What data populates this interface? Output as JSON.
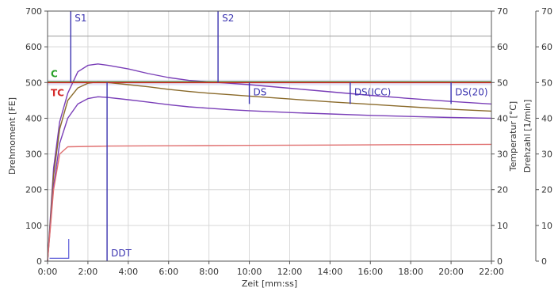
{
  "chart_data": {
    "type": "line",
    "xlabel": "Zeit [mm:ss]",
    "ylabel": "Drehmoment [FE]",
    "y2label": "Temperatur [°C]",
    "y3label": "Drehzahl [1/min]",
    "x_unit": "minutes",
    "xlim": [
      0,
      22
    ],
    "ylim": [
      0,
      700
    ],
    "y2lim": [
      0,
      70
    ],
    "y3lim": [
      0,
      70
    ],
    "grid": true,
    "x_tick_labels": [
      "0:00",
      "2:00",
      "4:00",
      "6:00",
      "8:00",
      "10:00",
      "12:00",
      "14:00",
      "16:00",
      "18:00",
      "20:00",
      "22:00"
    ],
    "y_tick_labels": [
      "0",
      "100",
      "200",
      "300",
      "400",
      "500",
      "600",
      "700"
    ],
    "y2_tick_labels": [
      "0",
      "10",
      "20",
      "30",
      "40",
      "50",
      "60",
      "70"
    ],
    "y3_tick_labels": [
      "0",
      "10",
      "20",
      "30",
      "40",
      "50",
      "60",
      "70"
    ],
    "reference_lines": [
      {
        "label": "C",
        "value": 502,
        "color": "#2aa12a"
      },
      {
        "label": "TC",
        "value": 500,
        "color": "#d42a2a"
      }
    ],
    "markers": [
      {
        "label": "S1",
        "x": 1.15,
        "position": "top"
      },
      {
        "label": "S2",
        "x": 8.45,
        "position": "top"
      },
      {
        "label": "DS",
        "x": 10.0,
        "position": "mid"
      },
      {
        "label": "DS(ICC)",
        "x": 15.0,
        "position": "mid"
      },
      {
        "label": "DS(20)",
        "x": 20.0,
        "position": "mid"
      },
      {
        "label": "DDT",
        "x": 2.95,
        "position": "bottom"
      }
    ],
    "series": [
      {
        "color": "#7a3fb8",
        "x": [
          0,
          0.3,
          0.6,
          1.0,
          1.5,
          2.0,
          2.5,
          3.0,
          4.0,
          5.0,
          6.0,
          7.0,
          8.0,
          9.0,
          10.0,
          12.0,
          14.0,
          16.0,
          18.0,
          20.0,
          22.0
        ],
        "values": [
          0,
          260,
          390,
          470,
          530,
          548,
          552,
          548,
          538,
          525,
          514,
          506,
          502,
          498,
          494,
          484,
          474,
          464,
          455,
          447,
          440
        ]
      },
      {
        "color": "#8a6a2a",
        "x": [
          0,
          0.3,
          0.6,
          1.0,
          1.5,
          2.0,
          2.5,
          3.0,
          4.0,
          5.0,
          6.0,
          7.0,
          8.0,
          9.0,
          10.0,
          12.0,
          14.0,
          16.0,
          18.0,
          20.0,
          22.0
        ],
        "values": [
          0,
          240,
          370,
          450,
          485,
          498,
          502,
          500,
          494,
          488,
          481,
          475,
          470,
          466,
          462,
          454,
          446,
          439,
          432,
          425,
          420
        ]
      },
      {
        "color": "#7a3fb8",
        "x": [
          0,
          0.3,
          0.6,
          1.0,
          1.5,
          2.0,
          2.5,
          3.0,
          4.0,
          5.0,
          6.0,
          7.0,
          8.0,
          9.0,
          10.0,
          12.0,
          14.0,
          16.0,
          18.0,
          20.0,
          22.0
        ],
        "values": [
          0,
          210,
          330,
          400,
          440,
          455,
          460,
          458,
          452,
          445,
          438,
          432,
          428,
          424,
          421,
          416,
          412,
          408,
          405,
          402,
          400
        ]
      },
      {
        "color": "#e07070",
        "x": [
          0,
          0.3,
          0.6,
          1.0,
          3.0,
          6.0,
          10.0,
          14.0,
          18.0,
          22.0
        ],
        "values": [
          0,
          200,
          300,
          320,
          322,
          323,
          324,
          325,
          326,
          327
        ]
      },
      {
        "color": "#9a9a9a",
        "x": [
          0,
          22
        ],
        "values": [
          630,
          630
        ]
      }
    ]
  }
}
